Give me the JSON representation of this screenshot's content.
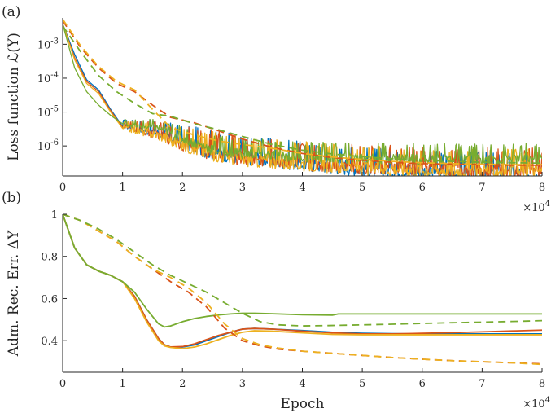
{
  "chart_data": [
    {
      "panel_label": "(a)",
      "type": "line",
      "ylabel": "Loss function ℒ(Y)",
      "xlabel": "",
      "x_multiplier_label": "×10",
      "x_multiplier_exp": "4",
      "xlim": [
        0,
        80000
      ],
      "ylim": [
        1.3e-07,
        0.006
      ],
      "yscale": "log",
      "xticks": [
        0,
        10000,
        20000,
        30000,
        40000,
        50000,
        60000,
        70000,
        80000
      ],
      "xtick_labels": [
        "0",
        "1",
        "2",
        "3",
        "4",
        "5",
        "6",
        "7",
        "8"
      ],
      "yticks": [
        1e-06,
        1e-05,
        0.0001,
        0.001
      ],
      "ytick_labels": [
        {
          "base": "10",
          "exp": "-6"
        },
        {
          "base": "10",
          "exp": "-5"
        },
        {
          "base": "10",
          "exp": "-4"
        },
        {
          "base": "10",
          "exp": "-3"
        }
      ],
      "grid": false,
      "series": [
        {
          "color": "#0072BD",
          "style": "solid",
          "x": [
            0,
            2000,
            4000,
            6000,
            8000,
            10000,
            13000,
            16000,
            20000,
            25000,
            30000,
            35000,
            40000,
            45000,
            50000,
            55000,
            60000,
            65000,
            70000,
            75000,
            80000
          ],
          "y": [
            0.004,
            0.0005,
            9e-05,
            4.5e-05,
            1.2e-05,
            3.8e-06,
            2.8e-06,
            2.2e-06,
            1.1e-06,
            5.8e-07,
            4.2e-07,
            3.3e-07,
            2.7e-07,
            2.2e-07,
            1.9e-07,
            1.6e-07,
            1.5e-07,
            1.4e-07,
            1.3e-07,
            1.3e-07,
            1.3e-07
          ]
        },
        {
          "color": "#D95319",
          "style": "solid",
          "x": [
            0,
            2000,
            4000,
            6000,
            8000,
            10000,
            13000,
            16000,
            20000,
            25000,
            30000,
            35000,
            40000,
            45000,
            50000,
            55000,
            60000,
            65000,
            70000,
            75000,
            80000
          ],
          "y": [
            0.004,
            0.0004,
            8e-05,
            4e-05,
            1.1e-05,
            3.6e-06,
            2.6e-06,
            2e-06,
            1e-06,
            5.5e-07,
            4e-07,
            3.3e-07,
            2.8e-07,
            2.5e-07,
            2.2e-07,
            2e-07,
            1.9e-07,
            1.8e-07,
            1.8e-07,
            1.7e-07,
            1.7e-07
          ]
        },
        {
          "color": "#EDB120",
          "style": "solid",
          "x": [
            0,
            2000,
            4000,
            6000,
            8000,
            10000,
            13000,
            16000,
            20000,
            25000,
            30000,
            35000,
            40000,
            45000,
            50000,
            55000,
            60000,
            65000,
            70000,
            75000,
            80000
          ],
          "y": [
            0.004,
            0.00035,
            7e-05,
            3.5e-05,
            1e-05,
            3.3e-06,
            2.5e-06,
            1.9e-06,
            9.5e-07,
            5.2e-07,
            3.8e-07,
            3.1e-07,
            2.6e-07,
            2.3e-07,
            2e-07,
            1.9e-07,
            1.8e-07,
            1.7e-07,
            1.7e-07,
            1.6e-07,
            1.6e-07
          ]
        },
        {
          "color": "#77AC30",
          "style": "solid",
          "x": [
            0,
            2000,
            4000,
            6000,
            8000,
            10000,
            13000,
            16000,
            20000,
            25000,
            30000,
            35000,
            40000,
            45000,
            50000,
            55000,
            60000,
            65000,
            70000,
            75000,
            80000
          ],
          "y": [
            0.004,
            0.0002,
            4e-05,
            1.6e-05,
            8e-06,
            4.5e-06,
            3.5e-06,
            3.2e-06,
            1.5e-06,
            7e-07,
            5.5e-07,
            4.8e-07,
            4.3e-07,
            4.1e-07,
            4e-07,
            3.9e-07,
            3.8e-07,
            3.8e-07,
            3.7e-07,
            3.7e-07,
            3.7e-07
          ]
        },
        {
          "color": "#D95319",
          "style": "dashed",
          "x": [
            0,
            3000,
            6000,
            9000,
            12000,
            15000,
            18000,
            22000,
            26000,
            30000,
            35000,
            40000,
            45000,
            50000,
            55000,
            60000,
            65000,
            70000,
            75000,
            80000
          ],
          "y": [
            0.005,
            0.0008,
            0.0002,
            7e-05,
            4e-05,
            1.6e-05,
            7e-06,
            4.8e-06,
            2.8e-06,
            1.6e-06,
            9e-07,
            6e-07,
            4.5e-07,
            3.8e-07,
            3.3e-07,
            3e-07,
            2.9e-07,
            2.8e-07,
            2.7e-07,
            2.7e-07
          ]
        },
        {
          "color": "#EDB120",
          "style": "dashed",
          "x": [
            0,
            3000,
            6000,
            9000,
            12000,
            15000,
            18000,
            22000,
            26000,
            30000,
            35000,
            40000,
            45000,
            50000,
            55000,
            60000,
            65000,
            70000,
            75000,
            80000
          ],
          "y": [
            0.0055,
            0.0009,
            0.00022,
            8e-05,
            4.5e-05,
            1.2e-05,
            3.5e-06,
            2.1e-06,
            1.4e-06,
            1.1e-06,
            8.5e-07,
            6e-07,
            4.7e-07,
            4e-07,
            3.5e-07,
            3.2e-07,
            3e-07,
            2.9e-07,
            2.8e-07,
            2.8e-07
          ]
        },
        {
          "color": "#77AC30",
          "style": "dashed",
          "x": [
            0,
            3000,
            6000,
            9000,
            12000,
            15000,
            18000,
            22000,
            26000,
            30000,
            35000,
            40000,
            45000,
            50000,
            55000,
            60000,
            65000,
            70000,
            75000,
            80000
          ],
          "y": [
            0.0035,
            0.0006,
            0.00012,
            4e-05,
            1.8e-05,
            9e-06,
            7.5e-06,
            4.5e-06,
            3e-06,
            1.9e-06,
            1.1e-06,
            7.5e-07,
            5.8e-07,
            4.8e-07,
            4.2e-07,
            3.8e-07,
            3.5e-07,
            3.3e-07,
            3.2e-07,
            3.1e-07
          ]
        }
      ]
    },
    {
      "panel_label": "(b)",
      "type": "line",
      "ylabel": "Adm. Rec. Err. ΔY",
      "xlabel": "Epoch",
      "x_multiplier_label": "×10",
      "x_multiplier_exp": "4",
      "xlim": [
        0,
        80000
      ],
      "ylim": [
        0.25,
        1.0
      ],
      "yscale": "linear",
      "xticks": [
        0,
        10000,
        20000,
        30000,
        40000,
        50000,
        60000,
        70000,
        80000
      ],
      "xtick_labels": [
        "0",
        "1",
        "2",
        "3",
        "4",
        "5",
        "6",
        "7",
        "8"
      ],
      "yticks": [
        0.4,
        0.6,
        0.8,
        1.0
      ],
      "ytick_labels": [
        "0.4",
        "0.6",
        "0.8",
        "1"
      ],
      "grid": false,
      "series": [
        {
          "color": "#0072BD",
          "style": "solid",
          "x": [
            0,
            2000,
            4000,
            6000,
            8000,
            10000,
            12000,
            14000,
            16000,
            17000,
            18000,
            20000,
            22000,
            24000,
            26000,
            28000,
            30000,
            32000,
            35000,
            40000,
            45000,
            50000,
            55000,
            60000,
            65000,
            70000,
            75000,
            80000
          ],
          "y": [
            1.0,
            0.84,
            0.76,
            0.73,
            0.71,
            0.68,
            0.61,
            0.5,
            0.41,
            0.38,
            0.37,
            0.37,
            0.38,
            0.4,
            0.42,
            0.44,
            0.455,
            0.458,
            0.455,
            0.448,
            0.44,
            0.435,
            0.433,
            0.432,
            0.432,
            0.432,
            0.432,
            0.432
          ]
        },
        {
          "color": "#D95319",
          "style": "solid",
          "x": [
            0,
            2000,
            4000,
            6000,
            8000,
            10000,
            12000,
            14000,
            16000,
            17000,
            18000,
            20000,
            22000,
            24000,
            26000,
            28000,
            30000,
            32000,
            35000,
            40000,
            45000,
            50000,
            55000,
            60000,
            65000,
            70000,
            75000,
            80000
          ],
          "y": [
            1.0,
            0.84,
            0.76,
            0.73,
            0.71,
            0.68,
            0.61,
            0.5,
            0.41,
            0.38,
            0.37,
            0.372,
            0.385,
            0.405,
            0.425,
            0.44,
            0.455,
            0.458,
            0.455,
            0.445,
            0.437,
            0.432,
            0.432,
            0.435,
            0.438,
            0.442,
            0.446,
            0.45
          ]
        },
        {
          "color": "#EDB120",
          "style": "solid",
          "x": [
            0,
            2000,
            4000,
            6000,
            8000,
            10000,
            12000,
            14000,
            16000,
            17000,
            18000,
            20000,
            22000,
            24000,
            26000,
            28000,
            30000,
            32000,
            35000,
            40000,
            45000,
            50000,
            55000,
            60000,
            65000,
            70000,
            75000,
            80000
          ],
          "y": [
            1.0,
            0.84,
            0.76,
            0.73,
            0.71,
            0.68,
            0.6,
            0.49,
            0.4,
            0.375,
            0.368,
            0.362,
            0.37,
            0.385,
            0.405,
            0.425,
            0.44,
            0.447,
            0.445,
            0.437,
            0.43,
            0.428,
            0.428,
            0.428,
            0.428,
            0.428,
            0.428,
            0.428
          ]
        },
        {
          "color": "#77AC30",
          "style": "solid",
          "x": [
            0,
            2000,
            4000,
            6000,
            8000,
            10000,
            12000,
            14000,
            16000,
            17000,
            18000,
            20000,
            22000,
            24000,
            26000,
            28000,
            30000,
            32000,
            35000,
            40000,
            45000,
            46000,
            50000,
            55000,
            60000,
            65000,
            70000,
            75000,
            80000
          ],
          "y": [
            1.0,
            0.84,
            0.76,
            0.73,
            0.71,
            0.68,
            0.63,
            0.55,
            0.48,
            0.465,
            0.47,
            0.49,
            0.505,
            0.515,
            0.522,
            0.527,
            0.53,
            0.53,
            0.528,
            0.523,
            0.521,
            0.527,
            0.527,
            0.527,
            0.527,
            0.527,
            0.527,
            0.527,
            0.527
          ]
        },
        {
          "color": "#D95319",
          "style": "dashed",
          "x": [
            0,
            3000,
            6000,
            9000,
            12000,
            15000,
            18000,
            21000,
            24000,
            27000,
            30000,
            33000,
            36000,
            40000,
            45000,
            50000,
            55000,
            60000,
            65000,
            70000,
            75000,
            80000
          ],
          "y": [
            1.0,
            0.97,
            0.92,
            0.87,
            0.8,
            0.74,
            0.68,
            0.63,
            0.56,
            0.46,
            0.4,
            0.375,
            0.36,
            0.35,
            0.34,
            0.33,
            0.32,
            0.312,
            0.305,
            0.3,
            0.295,
            0.29
          ]
        },
        {
          "color": "#EDB120",
          "style": "dashed",
          "x": [
            0,
            3000,
            6000,
            9000,
            12000,
            15000,
            18000,
            21000,
            24000,
            27000,
            30000,
            33000,
            36000,
            40000,
            45000,
            50000,
            55000,
            60000,
            65000,
            70000,
            75000,
            80000
          ],
          "y": [
            1.0,
            0.97,
            0.92,
            0.87,
            0.8,
            0.74,
            0.7,
            0.65,
            0.58,
            0.48,
            0.41,
            0.38,
            0.365,
            0.35,
            0.34,
            0.33,
            0.32,
            0.312,
            0.305,
            0.3,
            0.295,
            0.287
          ]
        },
        {
          "color": "#77AC30",
          "style": "dashed",
          "x": [
            0,
            3000,
            6000,
            9000,
            12000,
            15000,
            18000,
            21000,
            24000,
            27000,
            30000,
            33000,
            36000,
            40000,
            45000,
            50000,
            55000,
            60000,
            65000,
            70000,
            75000,
            80000
          ],
          "y": [
            1.0,
            0.97,
            0.93,
            0.88,
            0.82,
            0.76,
            0.71,
            0.67,
            0.63,
            0.58,
            0.53,
            0.49,
            0.475,
            0.47,
            0.472,
            0.475,
            0.478,
            0.482,
            0.485,
            0.488,
            0.491,
            0.495
          ]
        }
      ]
    }
  ]
}
